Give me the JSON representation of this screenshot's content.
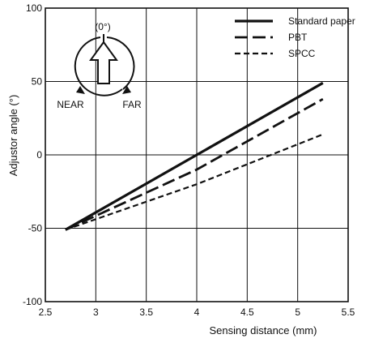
{
  "chart_data": {
    "type": "line",
    "xlabel": "Sensing distance (mm)",
    "ylabel": "Adjustor angle (°)",
    "xlim": [
      2.5,
      5.5
    ],
    "ylim": [
      -100,
      100
    ],
    "x_ticks": [
      "2.5",
      "3",
      "3.5",
      "4",
      "4.5",
      "5",
      "5.5"
    ],
    "y_ticks": [
      "100",
      "50",
      "0",
      "-50",
      "-100"
    ],
    "grid": true,
    "legend_position": "top-right",
    "series": [
      {
        "name": "Standard paper",
        "style": "solid",
        "points": [
          [
            2.7,
            -51
          ],
          [
            4.0,
            0
          ],
          [
            5.25,
            49
          ]
        ]
      },
      {
        "name": "PBT",
        "style": "long-dash",
        "points": [
          [
            2.7,
            -51
          ],
          [
            4.0,
            -10
          ],
          [
            5.25,
            38
          ]
        ]
      },
      {
        "name": "SPCC",
        "style": "short-dash",
        "points": [
          [
            2.7,
            -51
          ],
          [
            4.0,
            -20
          ],
          [
            5.25,
            14
          ]
        ]
      }
    ]
  },
  "inset": {
    "top_label": "(0°)",
    "left_label": "NEAR",
    "right_label": "FAR"
  },
  "colors": {
    "ink": "#111111",
    "background": "#ffffff"
  }
}
